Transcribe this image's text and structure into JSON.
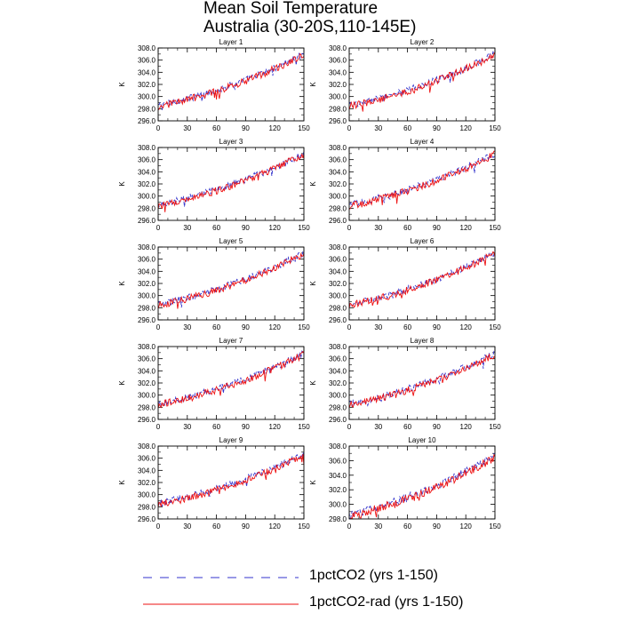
{
  "title": {
    "line1": "Mean Soil Temperature",
    "line2": "Australia (30-20S,110-145E)"
  },
  "legend": [
    {
      "label": "1pctCO2 (yrs 1-150)",
      "color": "#3333cc",
      "dash": true
    },
    {
      "label": "1pctCO2-rad (yrs 1-150)",
      "color": "#ee1111",
      "dash": false
    }
  ],
  "chart_data": [
    {
      "type": "line",
      "title": "Layer 1",
      "ylabel": "K",
      "xlim": [
        0,
        150
      ],
      "ylim": [
        296,
        308
      ],
      "xticks": [
        0,
        30,
        60,
        90,
        120,
        150
      ],
      "yticks": [
        "296.0",
        "298.0",
        "300.0",
        "302.0",
        "304.0",
        "306.0",
        "308.0"
      ],
      "series": [
        {
          "name": "1pctCO2 (yrs 1-150)",
          "start": 298.6,
          "end": 307.0
        },
        {
          "name": "1pctCO2-rad (yrs 1-150)",
          "start": 298.4,
          "end": 306.9
        }
      ]
    },
    {
      "type": "line",
      "title": "Layer 2",
      "ylabel": "K",
      "xlim": [
        0,
        150
      ],
      "ylim": [
        296,
        308
      ],
      "xticks": [
        0,
        30,
        60,
        90,
        120,
        150
      ],
      "yticks": [
        "296.0",
        "298.0",
        "300.0",
        "302.0",
        "304.0",
        "306.0",
        "308.0"
      ],
      "series": [
        {
          "name": "1pctCO2 (yrs 1-150)",
          "start": 298.6,
          "end": 307.0
        },
        {
          "name": "1pctCO2-rad (yrs 1-150)",
          "start": 298.4,
          "end": 306.9
        }
      ]
    },
    {
      "type": "line",
      "title": "Layer 3",
      "ylabel": "K",
      "xlim": [
        0,
        150
      ],
      "ylim": [
        296,
        308
      ],
      "xticks": [
        0,
        30,
        60,
        90,
        120,
        150
      ],
      "yticks": [
        "296.0",
        "298.0",
        "300.0",
        "302.0",
        "304.0",
        "306.0",
        "308.0"
      ],
      "series": [
        {
          "name": "1pctCO2 (yrs 1-150)",
          "start": 298.6,
          "end": 307.0
        },
        {
          "name": "1pctCO2-rad (yrs 1-150)",
          "start": 298.4,
          "end": 306.9
        }
      ]
    },
    {
      "type": "line",
      "title": "Layer 4",
      "ylabel": "K",
      "xlim": [
        0,
        150
      ],
      "ylim": [
        296,
        308
      ],
      "xticks": [
        0,
        30,
        60,
        90,
        120,
        150
      ],
      "yticks": [
        "296.0",
        "298.0",
        "300.0",
        "302.0",
        "304.0",
        "306.0",
        "308.0"
      ],
      "series": [
        {
          "name": "1pctCO2 (yrs 1-150)",
          "start": 298.6,
          "end": 307.0
        },
        {
          "name": "1pctCO2-rad (yrs 1-150)",
          "start": 298.4,
          "end": 306.9
        }
      ]
    },
    {
      "type": "line",
      "title": "Layer 5",
      "ylabel": "K",
      "xlim": [
        0,
        150
      ],
      "ylim": [
        296,
        308
      ],
      "xticks": [
        0,
        30,
        60,
        90,
        120,
        150
      ],
      "yticks": [
        "296.0",
        "298.0",
        "300.0",
        "302.0",
        "304.0",
        "306.0",
        "308.0"
      ],
      "series": [
        {
          "name": "1pctCO2 (yrs 1-150)",
          "start": 298.6,
          "end": 307.0
        },
        {
          "name": "1pctCO2-rad (yrs 1-150)",
          "start": 298.4,
          "end": 306.9
        }
      ]
    },
    {
      "type": "line",
      "title": "Layer 6",
      "ylabel": "K",
      "xlim": [
        0,
        150
      ],
      "ylim": [
        296,
        308
      ],
      "xticks": [
        0,
        30,
        60,
        90,
        120,
        150
      ],
      "yticks": [
        "296.0",
        "298.0",
        "300.0",
        "302.0",
        "304.0",
        "306.0",
        "308.0"
      ],
      "series": [
        {
          "name": "1pctCO2 (yrs 1-150)",
          "start": 298.6,
          "end": 307.0
        },
        {
          "name": "1pctCO2-rad (yrs 1-150)",
          "start": 298.4,
          "end": 306.9
        }
      ]
    },
    {
      "type": "line",
      "title": "Layer 7",
      "ylabel": "K",
      "xlim": [
        0,
        150
      ],
      "ylim": [
        296,
        308
      ],
      "xticks": [
        0,
        30,
        60,
        90,
        120,
        150
      ],
      "yticks": [
        "296.0",
        "298.0",
        "300.0",
        "302.0",
        "304.0",
        "306.0",
        "308.0"
      ],
      "series": [
        {
          "name": "1pctCO2 (yrs 1-150)",
          "start": 298.6,
          "end": 306.9
        },
        {
          "name": "1pctCO2-rad (yrs 1-150)",
          "start": 298.4,
          "end": 306.7
        }
      ]
    },
    {
      "type": "line",
      "title": "Layer 8",
      "ylabel": "K",
      "xlim": [
        0,
        150
      ],
      "ylim": [
        296,
        308
      ],
      "xticks": [
        0,
        30,
        60,
        90,
        120,
        150
      ],
      "yticks": [
        "296.0",
        "298.0",
        "300.0",
        "302.0",
        "304.0",
        "306.0",
        "308.0"
      ],
      "series": [
        {
          "name": "1pctCO2 (yrs 1-150)",
          "start": 298.6,
          "end": 306.9
        },
        {
          "name": "1pctCO2-rad (yrs 1-150)",
          "start": 298.4,
          "end": 306.7
        }
      ]
    },
    {
      "type": "line",
      "title": "Layer 9",
      "ylabel": "K",
      "xlim": [
        0,
        150
      ],
      "ylim": [
        296,
        308
      ],
      "xticks": [
        0,
        30,
        60,
        90,
        120,
        150
      ],
      "yticks": [
        "296.0",
        "298.0",
        "300.0",
        "302.0",
        "304.0",
        "306.0",
        "308.0"
      ],
      "series": [
        {
          "name": "1pctCO2 (yrs 1-150)",
          "start": 298.6,
          "end": 306.7
        },
        {
          "name": "1pctCO2-rad (yrs 1-150)",
          "start": 298.4,
          "end": 306.5
        }
      ]
    },
    {
      "type": "line",
      "title": "Layer 10",
      "ylabel": "K",
      "xlim": [
        0,
        150
      ],
      "ylim": [
        298,
        308
      ],
      "xticks": [
        0,
        30,
        60,
        90,
        120,
        150
      ],
      "yticks": [
        "298.0",
        "300.0",
        "302.0",
        "304.0",
        "306.0",
        "308.0"
      ],
      "series": [
        {
          "name": "1pctCO2 (yrs 1-150)",
          "start": 298.6,
          "end": 306.7
        },
        {
          "name": "1pctCO2-rad (yrs 1-150)",
          "start": 298.4,
          "end": 306.5
        }
      ]
    }
  ]
}
